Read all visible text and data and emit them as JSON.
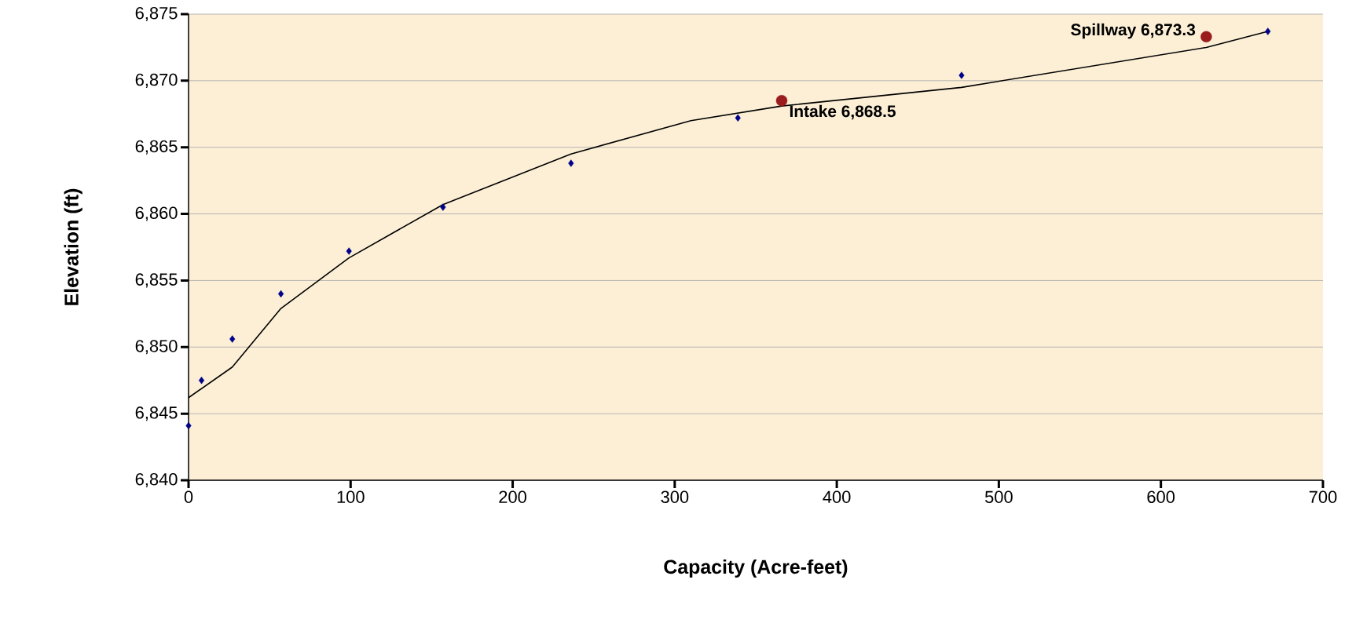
{
  "chart_data": {
    "type": "scatter",
    "xlabel": "Capacity (Acre-feet)",
    "ylabel": "Elevation (ft)",
    "xlim": [
      0,
      700
    ],
    "xticks": [
      0,
      100,
      200,
      300,
      400,
      500,
      600,
      700
    ],
    "ylim": [
      6840,
      6875
    ],
    "yticks": [
      {
        "value": 6840,
        "label": "6,840"
      },
      {
        "value": 6845,
        "label": "6,845"
      },
      {
        "value": 6850,
        "label": "6,850"
      },
      {
        "value": 6855,
        "label": "6,855"
      },
      {
        "value": 6860,
        "label": "6,860"
      },
      {
        "value": 6865,
        "label": "6,865"
      },
      {
        "value": 6870,
        "label": "6,870"
      },
      {
        "value": 6875,
        "label": "6,875"
      }
    ],
    "grid": "y",
    "series": [
      {
        "type": "line",
        "color": "#000000",
        "marker": "none",
        "line_style": "solid",
        "x": [
          0,
          27,
          57,
          99,
          157,
          236,
          310,
          366,
          477,
          628,
          666
        ],
        "values": [
          6846.2,
          6848.5,
          6852.9,
          6856.7,
          6860.7,
          6864.5,
          6867.0,
          6868.1,
          6869.5,
          6872.5,
          6873.7
        ]
      },
      {
        "color": "#00008b",
        "marker": "diamond",
        "x": [
          0,
          8,
          27,
          57,
          99,
          157,
          236,
          339,
          477,
          666
        ],
        "values": [
          6844.1,
          6847.5,
          6850.6,
          6854.0,
          6857.2,
          6860.5,
          6863.8,
          6867.2,
          6870.4,
          6873.7
        ]
      },
      {
        "color": "#9b1c1c",
        "marker": "circle",
        "x": [
          366,
          628
        ],
        "values": [
          6868.5,
          6873.3
        ]
      }
    ],
    "annotations": [
      {
        "text": "Intake 6,868.5",
        "x": 366,
        "y": 6868.5
      },
      {
        "text": "Spillway 6,873.3",
        "x": 628,
        "y": 6873.3
      }
    ]
  }
}
